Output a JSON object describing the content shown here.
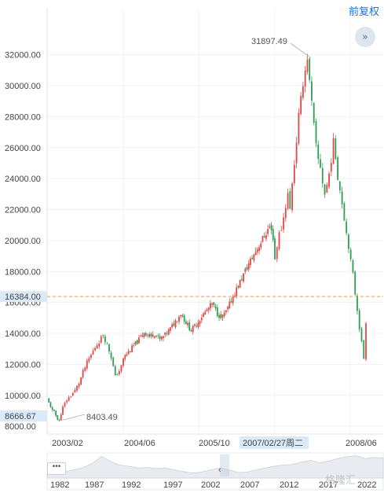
{
  "toolbar": {
    "fq_label": "前复权",
    "collapse_icon": "double-chevron-right-icon",
    "more_icon": "ellipsis-icon"
  },
  "watermark": "格隆汇",
  "colors": {
    "up": "#e64545",
    "down": "#2e9e55",
    "ref_line": "#e89a3c",
    "label_bg": "#dbeaf8"
  },
  "chart_data": {
    "type": "candlestick",
    "title": "",
    "ylim": [
      7500,
      33000
    ],
    "y_ticks": [
      8000,
      10000,
      12000,
      14000,
      16000,
      18000,
      20000,
      22000,
      24000,
      26000,
      28000,
      30000,
      32000
    ],
    "y_tick_labels": [
      "8000.00",
      "10000.00",
      "12000.00",
      "14000.00",
      "16000.00",
      "18000.00",
      "20000.00",
      "22000.00",
      "24000.00",
      "26000.00",
      "28000.00",
      "30000.00",
      "32000.00"
    ],
    "x_tick_labels": [
      "2003/02",
      "2004/06",
      "2005/10",
      "2008/06"
    ],
    "crosshair_x_label": "2007/02/27周二",
    "reference_line": {
      "value": 16384.0,
      "label": "16384.00"
    },
    "last_value_label": "8666.67",
    "high": {
      "value": 31897.49,
      "label": "31897.49"
    },
    "low": {
      "value": 8403.49,
      "label": "8403.49"
    },
    "price_path": [
      [
        9750,
        9500,
        9300,
        9000,
        8900,
        8700,
        8500,
        8403,
        8700,
        9000
      ],
      [
        9200,
        9700,
        10000,
        10300,
        10800,
        11500,
        12100,
        12600,
        13100,
        13500,
        13900,
        13300,
        12500,
        11200,
        11600,
        12100
      ],
      [
        12400,
        12800,
        13200,
        13600,
        14100,
        13800,
        14000,
        13600,
        13900,
        14300,
        14800,
        15300,
        14700,
        14200,
        14600,
        15100,
        15500,
        15900,
        15300,
        15000,
        15600,
        16400,
        17100,
        17800,
        18500,
        19100,
        19700,
        20300,
        20900,
        19900
      ],
      [
        18800,
        19700,
        20400,
        20800,
        21500,
        22300,
        23000,
        22000,
        23800,
        25000,
        26500,
        28000,
        29000,
        30300,
        31000,
        31897,
        30200,
        28800,
        27400,
        26000,
        25200,
        24800,
        23800,
        23000,
        23600,
        24300,
        25300,
        26300,
        25400,
        24200,
        23300,
        22500,
        21500,
        20500,
        19700,
        18600,
        17800,
        16600,
        15600,
        14400,
        13400,
        12400,
        14800
      ]
    ],
    "navigator": {
      "x_tick_labels": [
        "1982",
        "1987",
        "1992",
        "1997",
        "2002",
        "2007",
        "2012",
        "2017",
        "2022"
      ],
      "profile": [
        7000,
        9000,
        11000,
        14000,
        18000,
        25000,
        37000,
        28000,
        22000,
        20000,
        17000,
        18000,
        16000,
        17000,
        14000,
        11000,
        8500,
        10000,
        14000,
        17000,
        14000,
        9500,
        10000,
        14000,
        17000,
        20000,
        22000,
        23000,
        27000,
        30000,
        26000,
        29000,
        33000,
        36000,
        38000,
        33000,
        35000,
        34000
      ]
    }
  }
}
